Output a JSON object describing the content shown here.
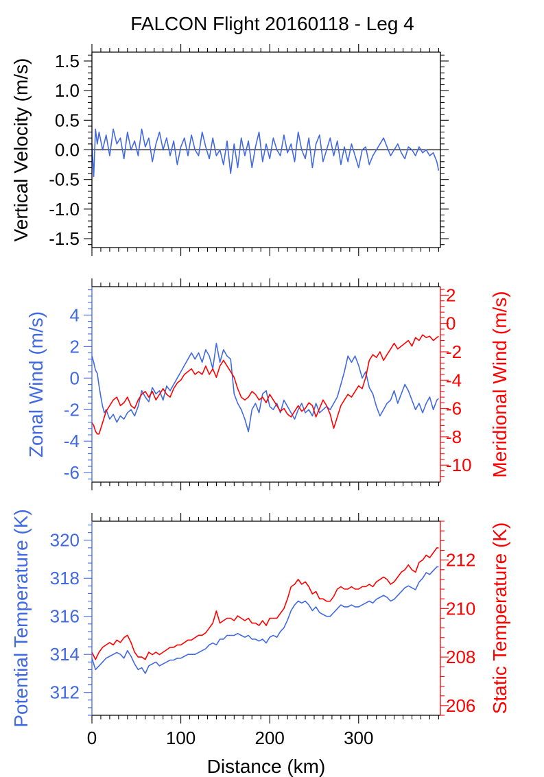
{
  "title": "FALCON Flight 20160118 - Leg 4",
  "colors": {
    "blue": "#4169e1",
    "red": "#ff0000",
    "axis": "#000000"
  },
  "chart_data": [
    {
      "type": "line",
      "x": [
        0,
        2,
        4,
        6,
        8,
        12,
        16,
        20,
        24,
        28,
        32,
        36,
        40,
        44,
        48,
        52,
        56,
        60,
        64,
        68,
        72,
        76,
        80,
        84,
        88,
        92,
        96,
        100,
        104,
        108,
        112,
        116,
        120,
        124,
        128,
        132,
        136,
        140,
        144,
        148,
        152,
        156,
        160,
        164,
        168,
        172,
        176,
        180,
        184,
        188,
        192,
        196,
        200,
        204,
        208,
        212,
        216,
        220,
        224,
        228,
        232,
        236,
        240,
        244,
        248,
        252,
        256,
        260,
        264,
        268,
        272,
        276,
        280,
        284,
        288,
        292,
        296,
        300,
        304,
        308,
        312,
        316,
        320,
        324,
        328,
        332,
        336,
        340,
        344,
        348,
        352,
        356,
        360,
        364,
        368,
        372,
        376,
        380,
        384,
        388,
        390
      ],
      "series": [
        {
          "values": [
            0.1,
            -0.45,
            0.35,
            0.1,
            0.3,
            0.0,
            0.25,
            -0.1,
            0.35,
            0.1,
            0.2,
            -0.15,
            0.3,
            0.0,
            0.15,
            -0.1,
            0.35,
            0.05,
            0.2,
            -0.2,
            0.1,
            0.3,
            0.0,
            0.2,
            -0.1,
            0.15,
            -0.25,
            0.05,
            0.2,
            -0.1,
            0.25,
            0.0,
            -0.1,
            0.3,
            0.05,
            -0.15,
            0.2,
            -0.1,
            0.0,
            -0.25,
            0.15,
            -0.4,
            0.1,
            -0.3,
            0.2,
            -0.1,
            0.15,
            -0.3,
            0.05,
            0.3,
            -0.2,
            0.1,
            -0.15,
            0.2,
            0.0,
            -0.1,
            0.25,
            -0.05,
            0.1,
            -0.2,
            0.3,
            0.0,
            -0.15,
            0.2,
            -0.3,
            0.1,
            0.25,
            -0.2,
            0.0,
            0.2,
            -0.1,
            0.15,
            -0.25,
            0.05,
            -0.2,
            0.1,
            -0.1,
            -0.3,
            0.0,
            0.05,
            -0.25,
            -0.1,
            0.0,
            0.1,
            0.2,
            0.05,
            -0.1,
            0.0,
            0.1,
            -0.05,
            -0.15,
            0.05,
            0.0,
            -0.1,
            0.05,
            -0.05,
            0.0,
            -0.1,
            -0.05,
            -0.2,
            -0.35
          ]
        }
      ],
      "xlim": [
        0,
        392
      ],
      "ylim": [
        -1.65,
        1.65
      ],
      "yticks": [
        "1.5",
        "1.0",
        "0.5",
        "0.0",
        "-0.5",
        "-1.0",
        "-1.5"
      ],
      "ytick_values": [
        1.5,
        1.0,
        0.5,
        0.0,
        -0.5,
        -1.0,
        -1.5
      ],
      "ylabel": "Vertical Velocity (m/s)"
    },
    {
      "type": "line",
      "x": [
        0,
        2,
        4,
        6,
        8,
        10,
        12,
        14,
        16,
        20,
        24,
        28,
        32,
        36,
        40,
        44,
        48,
        52,
        56,
        60,
        64,
        68,
        72,
        76,
        80,
        84,
        88,
        92,
        96,
        100,
        104,
        108,
        112,
        116,
        120,
        124,
        128,
        132,
        136,
        140,
        144,
        148,
        152,
        156,
        160,
        164,
        168,
        172,
        176,
        180,
        184,
        188,
        192,
        196,
        200,
        204,
        208,
        212,
        216,
        220,
        224,
        228,
        232,
        236,
        240,
        244,
        248,
        252,
        256,
        260,
        264,
        268,
        272,
        276,
        280,
        284,
        288,
        292,
        296,
        300,
        304,
        308,
        312,
        316,
        320,
        324,
        328,
        332,
        336,
        340,
        344,
        348,
        352,
        356,
        360,
        364,
        368,
        372,
        376,
        380,
        384,
        388,
        390
      ],
      "series": [
        {
          "color": "blue",
          "values": [
            1.4,
            1.0,
            0.5,
            0.3,
            -0.5,
            -1.2,
            -1.8,
            -2.2,
            -2.0,
            -2.6,
            -2.3,
            -2.8,
            -2.4,
            -2.6,
            -2.2,
            -2.0,
            -2.4,
            -1.8,
            -0.8,
            -1.2,
            -1.5,
            -0.6,
            -1.0,
            -0.8,
            -1.4,
            -0.5,
            -0.8,
            -0.4,
            0.0,
            0.4,
            0.8,
            1.2,
            1.6,
            1.2,
            1.6,
            1.0,
            1.8,
            1.4,
            0.6,
            2.2,
            1.0,
            1.8,
            1.4,
            1.2,
            -1.0,
            -1.6,
            -2.0,
            -2.6,
            -3.4,
            -2.0,
            -1.6,
            -2.2,
            -1.0,
            -0.8,
            -1.8,
            -2.0,
            -1.6,
            -2.2,
            -1.4,
            -1.8,
            -2.2,
            -2.6,
            -2.0,
            -1.6,
            -2.2,
            -2.0,
            -2.4,
            -1.6,
            -2.2,
            -2.0,
            -1.8,
            -2.0,
            -1.6,
            -1.2,
            -0.4,
            0.4,
            1.4,
            1.0,
            1.4,
            0.8,
            0.0,
            0.4,
            -0.6,
            -1.0,
            -1.8,
            -2.4,
            -2.0,
            -1.6,
            -1.4,
            -0.8,
            -1.6,
            -1.0,
            -0.4,
            -0.8,
            -1.4,
            -2.0,
            -1.6,
            -2.2,
            -1.6,
            -1.2,
            -2.0,
            -1.4,
            -1.3
          ]
        },
        {
          "color": "red",
          "values": [
            -7.0,
            -7.2,
            -7.6,
            -7.8,
            -7.8,
            -7.4,
            -7.0,
            -6.6,
            -6.2,
            -5.8,
            -5.4,
            -5.2,
            -5.8,
            -5.6,
            -5.2,
            -5.8,
            -6.0,
            -5.4,
            -5.0,
            -4.8,
            -5.2,
            -4.8,
            -5.4,
            -5.0,
            -4.6,
            -5.0,
            -5.2,
            -4.6,
            -4.2,
            -4.0,
            -3.6,
            -3.4,
            -3.2,
            -3.6,
            -3.4,
            -3.6,
            -3.0,
            -3.6,
            -3.2,
            -3.8,
            -3.0,
            -2.6,
            -3.0,
            -3.4,
            -3.8,
            -4.6,
            -5.2,
            -5.4,
            -5.2,
            -4.8,
            -5.0,
            -5.4,
            -5.2,
            -5.6,
            -5.0,
            -5.4,
            -5.8,
            -6.2,
            -6.0,
            -6.4,
            -6.6,
            -6.2,
            -5.8,
            -6.2,
            -6.0,
            -5.6,
            -5.8,
            -6.6,
            -6.0,
            -5.4,
            -5.8,
            -6.4,
            -7.4,
            -6.6,
            -5.8,
            -5.4,
            -5.0,
            -5.2,
            -4.8,
            -4.4,
            -4.6,
            -3.8,
            -2.6,
            -2.2,
            -2.4,
            -2.0,
            -2.6,
            -2.2,
            -1.8,
            -1.4,
            -1.8,
            -1.6,
            -1.4,
            -1.2,
            -1.6,
            -1.0,
            -1.2,
            -0.8,
            -1.0,
            -0.9,
            -1.2,
            -1.0,
            -0.9
          ]
        }
      ],
      "xlim": [
        0,
        392
      ],
      "ylim": [
        -6.6,
        5.8
      ],
      "yticks": [
        "4",
        "2",
        "0",
        "-2",
        "-4",
        "-6"
      ],
      "ytick_values": [
        4,
        2,
        0,
        -2,
        -4,
        -6
      ],
      "ylim_right": [
        -11.2,
        2.6
      ],
      "yticks_right": [
        "2",
        "0",
        "-2",
        "-4",
        "-6",
        "-8",
        "-10"
      ],
      "ytick_values_right": [
        2,
        0,
        -2,
        -4,
        -6,
        -8,
        -10
      ],
      "ylabel": "Zonal Wind (m/s)",
      "ylabel_right": "Meridional Wind (m/s)"
    },
    {
      "type": "line",
      "x": [
        0,
        4,
        8,
        12,
        16,
        20,
        24,
        28,
        32,
        36,
        40,
        44,
        48,
        52,
        56,
        60,
        64,
        68,
        72,
        76,
        80,
        84,
        88,
        92,
        96,
        100,
        104,
        108,
        112,
        116,
        120,
        124,
        128,
        132,
        136,
        140,
        144,
        148,
        152,
        156,
        160,
        164,
        168,
        172,
        176,
        180,
        184,
        188,
        192,
        196,
        200,
        204,
        208,
        212,
        216,
        220,
        224,
        228,
        232,
        236,
        240,
        244,
        248,
        252,
        256,
        260,
        264,
        268,
        272,
        276,
        280,
        284,
        288,
        292,
        296,
        300,
        304,
        308,
        312,
        316,
        320,
        324,
        328,
        332,
        336,
        340,
        344,
        348,
        352,
        356,
        360,
        364,
        368,
        372,
        376,
        380,
        384,
        388,
        390
      ],
      "series": [
        {
          "color": "blue",
          "values": [
            313.8,
            313.2,
            313.4,
            313.6,
            313.8,
            313.9,
            314.0,
            314.1,
            314.0,
            313.8,
            314.2,
            313.9,
            313.5,
            313.2,
            313.3,
            313.0,
            313.4,
            313.5,
            313.6,
            313.4,
            313.5,
            313.6,
            313.7,
            313.7,
            313.8,
            313.8,
            313.9,
            314.0,
            314.0,
            314.0,
            314.1,
            314.2,
            314.3,
            314.5,
            314.6,
            314.5,
            314.8,
            314.8,
            315.0,
            315.0,
            315.0,
            315.1,
            315.0,
            314.9,
            315.0,
            314.8,
            314.8,
            314.7,
            314.8,
            314.6,
            314.9,
            315.0,
            314.9,
            315.2,
            315.4,
            315.8,
            316.3,
            316.6,
            316.8,
            316.7,
            316.8,
            316.6,
            316.3,
            316.5,
            316.2,
            316.1,
            316.0,
            316.0,
            316.2,
            316.4,
            316.6,
            316.5,
            316.5,
            316.6,
            316.5,
            316.5,
            316.6,
            316.7,
            316.8,
            316.7,
            316.9,
            317.0,
            317.1,
            317.0,
            316.8,
            316.9,
            317.1,
            317.3,
            317.5,
            317.6,
            317.5,
            317.4,
            317.8,
            318.0,
            318.3,
            318.2,
            318.4,
            318.6,
            318.6
          ]
        },
        {
          "color": "red",
          "values": [
            208.2,
            207.9,
            208.2,
            208.4,
            208.5,
            208.6,
            208.5,
            208.7,
            208.6,
            208.8,
            208.9,
            208.6,
            208.2,
            208.0,
            208.0,
            207.9,
            208.2,
            208.1,
            208.2,
            208.1,
            208.2,
            208.3,
            208.4,
            208.4,
            208.5,
            208.5,
            208.6,
            208.7,
            208.7,
            208.8,
            208.9,
            208.9,
            209.0,
            209.2,
            209.4,
            209.9,
            209.4,
            209.5,
            209.6,
            209.6,
            209.5,
            209.7,
            209.6,
            209.5,
            209.6,
            209.4,
            209.4,
            209.3,
            209.5,
            209.3,
            209.6,
            209.6,
            209.6,
            209.8,
            210.0,
            210.4,
            210.9,
            211.0,
            211.2,
            211.0,
            211.1,
            210.9,
            210.6,
            210.7,
            210.4,
            210.4,
            210.3,
            210.3,
            210.5,
            210.8,
            210.9,
            210.8,
            210.8,
            210.9,
            210.8,
            210.8,
            210.9,
            210.9,
            211.0,
            210.9,
            211.1,
            211.2,
            211.3,
            211.2,
            211.0,
            211.1,
            211.3,
            211.5,
            211.6,
            211.8,
            211.6,
            211.5,
            211.9,
            212.0,
            212.2,
            212.1,
            212.3,
            212.5,
            212.5
          ]
        }
      ],
      "xlim": [
        0,
        392
      ],
      "xticks": [
        "0",
        "100",
        "200",
        "300"
      ],
      "xtick_values": [
        0,
        100,
        200,
        300
      ],
      "ylim": [
        310.8,
        321.0
      ],
      "yticks": [
        "320",
        "318",
        "316",
        "314",
        "312"
      ],
      "ytick_values": [
        320,
        318,
        316,
        314,
        312
      ],
      "ylim_right": [
        205.6,
        213.6
      ],
      "yticks_right": [
        "212",
        "210",
        "208",
        "206"
      ],
      "ytick_values_right": [
        212,
        210,
        208,
        206
      ],
      "xlabel": "Distance (km)",
      "ylabel": "Potential Temperature (K)",
      "ylabel_right": "Static Temperature (K)"
    }
  ]
}
